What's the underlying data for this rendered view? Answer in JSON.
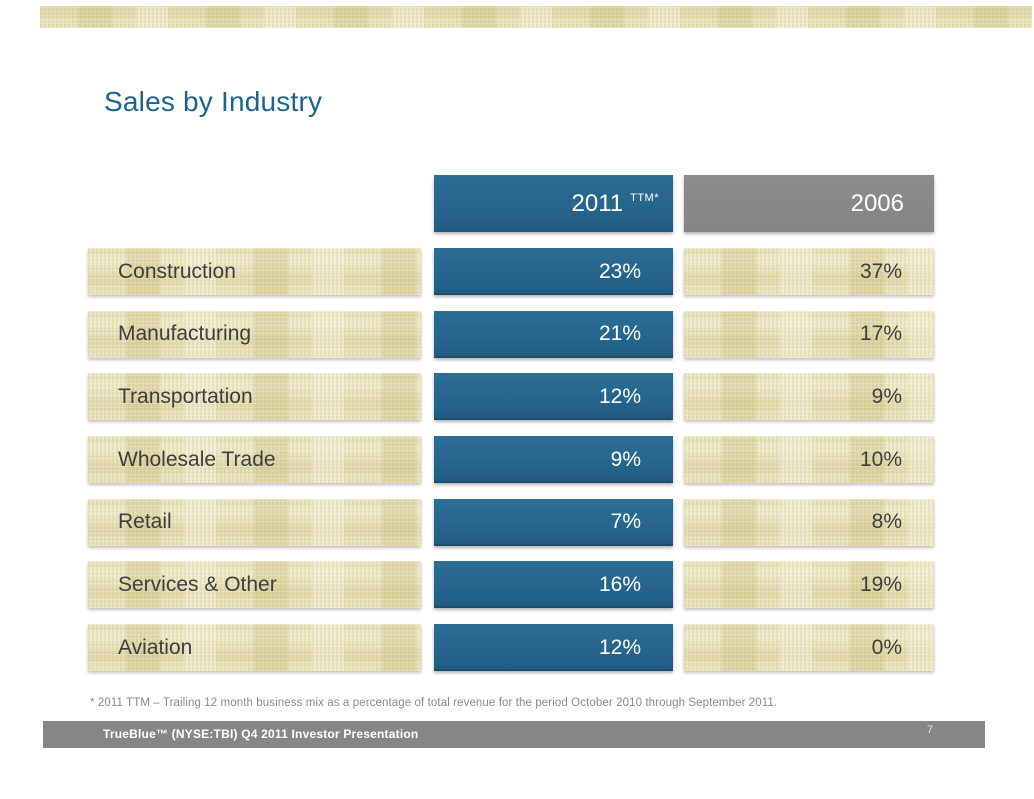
{
  "slide": {
    "title": "Sales by Industry",
    "footnote": "* 2011 TTM – Trailing 12 month business mix as a percentage of total revenue for the period October 2010 through September 2011.",
    "footer": {
      "text": "TrueBlue™ (NYSE:TBI) Q4 2011 Investor Presentation",
      "page_number": "7"
    }
  },
  "table": {
    "columns": [
      {
        "year": "2011",
        "note": "TTM*"
      },
      {
        "year": "2006"
      }
    ],
    "rows": [
      {
        "label": "Construction",
        "ttm2011": "23%",
        "y2006": "37%"
      },
      {
        "label": "Manufacturing",
        "ttm2011": "21%",
        "y2006": "17%"
      },
      {
        "label": "Transportation",
        "ttm2011": "12%",
        "y2006": "9%"
      },
      {
        "label": "Wholesale Trade",
        "ttm2011": "9%",
        "y2006": "10%"
      },
      {
        "label": "Retail",
        "ttm2011": "7%",
        "y2006": "8%"
      },
      {
        "label": "Services & Other",
        "ttm2011": "16%",
        "y2006": "19%"
      },
      {
        "label": "Aviation",
        "ttm2011": "12%",
        "y2006": "0%"
      }
    ]
  },
  "chart_data": {
    "type": "table",
    "title": "Sales by Industry",
    "categories": [
      "Construction",
      "Manufacturing",
      "Transportation",
      "Wholesale Trade",
      "Retail",
      "Services & Other",
      "Aviation"
    ],
    "series": [
      {
        "name": "2011 TTM*",
        "values": [
          23,
          21,
          12,
          9,
          7,
          16,
          12
        ],
        "unit": "%"
      },
      {
        "name": "2006",
        "values": [
          37,
          17,
          9,
          10,
          8,
          19,
          0
        ],
        "unit": "%"
      }
    ],
    "footnote": "* 2011 TTM – Trailing 12 month business mix as a percentage of total revenue for the period October 2010 through September 2011."
  },
  "colors": {
    "accent_blue": "#26648B",
    "header_gray": "#868686",
    "tan_fill": "#E9E3BD",
    "title_blue": "#1E6390",
    "text_dark": "#3E3E3E",
    "footer_bar": "#868686"
  }
}
